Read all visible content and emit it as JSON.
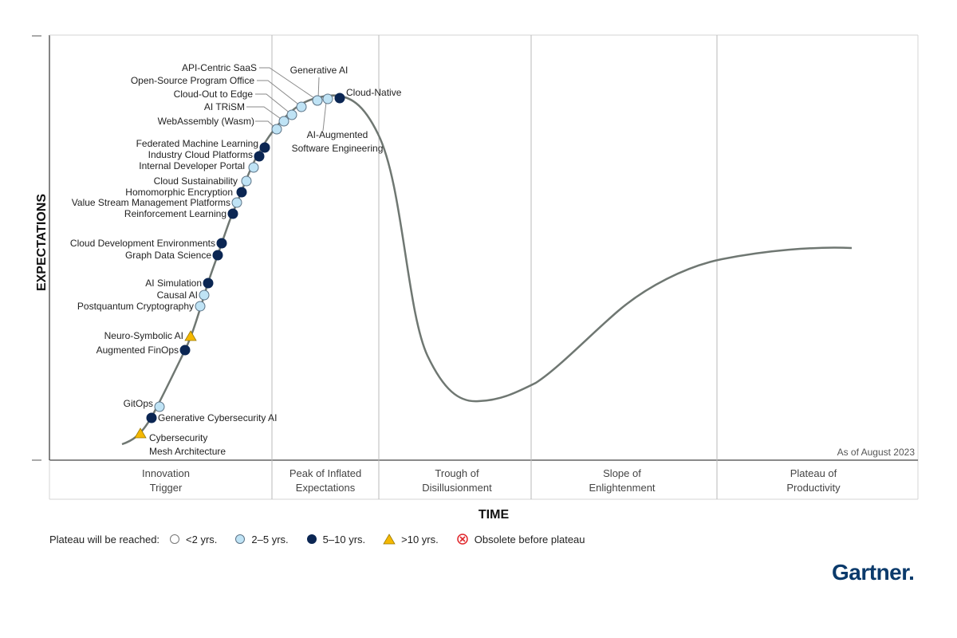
{
  "chart_data": {
    "type": "hype-cycle",
    "y_axis_title": "EXPECTATIONS",
    "x_axis_title": "TIME",
    "as_of": "As of August 2023",
    "phases": [
      {
        "line1": "Innovation",
        "line2": "Trigger"
      },
      {
        "line1": "Peak of Inflated",
        "line2": "Expectations"
      },
      {
        "line1": "Trough of",
        "line2": "Disillusionment"
      },
      {
        "line1": "Slope of",
        "line2": "Enlightenment"
      },
      {
        "line1": "Plateau of",
        "line2": "Productivity"
      }
    ],
    "technologies": [
      {
        "name": "Cybersecurity",
        "name2": "Mesh Architecture",
        "plateau": ">10 yrs."
      },
      {
        "name": "Generative Cybersecurity AI",
        "plateau": "5–10 yrs."
      },
      {
        "name": "GitOps",
        "plateau": "2–5 yrs."
      },
      {
        "name": "Augmented FinOps",
        "plateau": "5–10 yrs."
      },
      {
        "name": "Neuro-Symbolic AI",
        "plateau": ">10 yrs."
      },
      {
        "name": "Postquantum Cryptography",
        "plateau": "2–5 yrs."
      },
      {
        "name": "Causal AI",
        "plateau": "2–5 yrs."
      },
      {
        "name": "AI Simulation",
        "plateau": "5–10 yrs."
      },
      {
        "name": "Graph Data Science",
        "plateau": "5–10 yrs."
      },
      {
        "name": "Cloud Development Environments",
        "plateau": "5–10 yrs."
      },
      {
        "name": "Reinforcement Learning",
        "plateau": "5–10 yrs."
      },
      {
        "name": "Value Stream Management Platforms",
        "plateau": "2–5 yrs."
      },
      {
        "name": "Homomorphic Encryption",
        "plateau": "5–10 yrs."
      },
      {
        "name": "Cloud Sustainability",
        "plateau": "2–5 yrs."
      },
      {
        "name": "Internal Developer Portal",
        "plateau": "2–5 yrs."
      },
      {
        "name": "Industry Cloud Platforms",
        "plateau": "5–10 yrs."
      },
      {
        "name": "Federated Machine Learning",
        "plateau": "5–10 yrs."
      },
      {
        "name": "WebAssembly (Wasm)",
        "plateau": "2–5 yrs."
      },
      {
        "name": "AI TRiSM",
        "plateau": "2–5 yrs."
      },
      {
        "name": "Cloud-Out to Edge",
        "plateau": "2–5 yrs."
      },
      {
        "name": "Open-Source Program Office",
        "plateau": "2–5 yrs."
      },
      {
        "name": "API-Centric SaaS",
        "plateau": "2–5 yrs."
      },
      {
        "name": "Generative AI",
        "plateau": "2–5 yrs."
      },
      {
        "name": "AI-Augmented",
        "name2": "Software Engineering",
        "plateau": "2–5 yrs."
      },
      {
        "name": "Cloud-Native",
        "plateau": "5–10 yrs."
      }
    ],
    "legend": {
      "title": "Plateau will be reached:",
      "items": [
        {
          "label": "<2 yrs.",
          "marker": "circle-white"
        },
        {
          "label": "2–5 yrs.",
          "marker": "circle-light-blue"
        },
        {
          "label": "5–10 yrs.",
          "marker": "circle-navy"
        },
        {
          "label": ">10 yrs.",
          "marker": "triangle-yellow"
        },
        {
          "label": "Obsolete before plateau",
          "marker": "circled-x-red"
        }
      ]
    },
    "colors": {
      "lt2": "#ffffff",
      "y2to5": "#bfe3f5",
      "y5to10": "#0b2653",
      "gt10": "#f5b800",
      "obsolete": "#e0262b",
      "curve": "#6f7772"
    }
  },
  "brand": {
    "logo_text": "Gartner",
    "logo_dot": "."
  }
}
